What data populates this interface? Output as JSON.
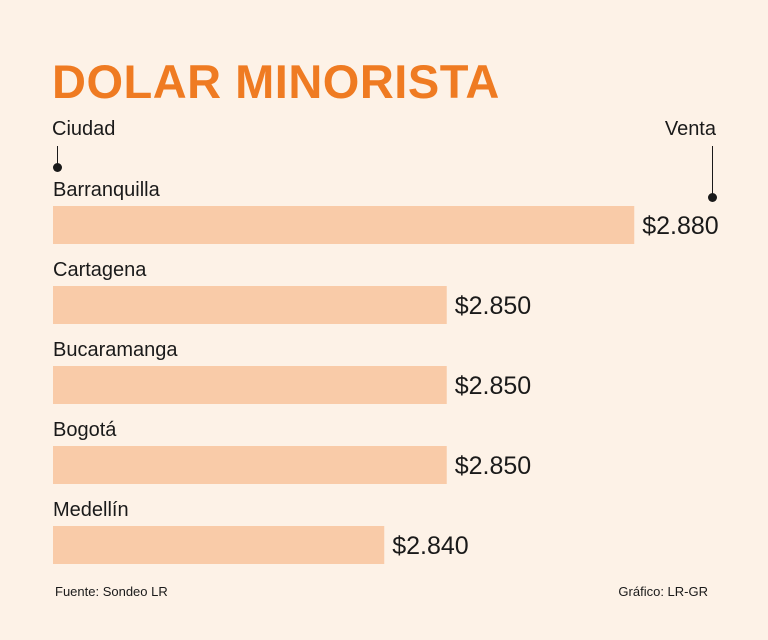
{
  "title": "DOLAR MINORISTA",
  "headers": {
    "left": "Ciudad",
    "right": "Venta"
  },
  "footer": {
    "source": "Fuente: Sondeo LR",
    "credit": "Gráfico: LR-GR"
  },
  "colors": {
    "bar": "#f9cba8",
    "title": "#ef7b22",
    "background": "#fdf2e7",
    "text": "#1a1a1a"
  },
  "chart_data": {
    "type": "bar",
    "orientation": "horizontal",
    "categories": [
      "Barranquilla",
      "Cartagena",
      "Bucaramanga",
      "Bogotá",
      "Medellín"
    ],
    "values": [
      2880,
      2850,
      2850,
      2850,
      2840
    ],
    "value_labels": [
      "$2.880",
      "$2.850",
      "$2.850",
      "$2.850",
      "$2.840"
    ],
    "grid": false,
    "legend": "none"
  }
}
